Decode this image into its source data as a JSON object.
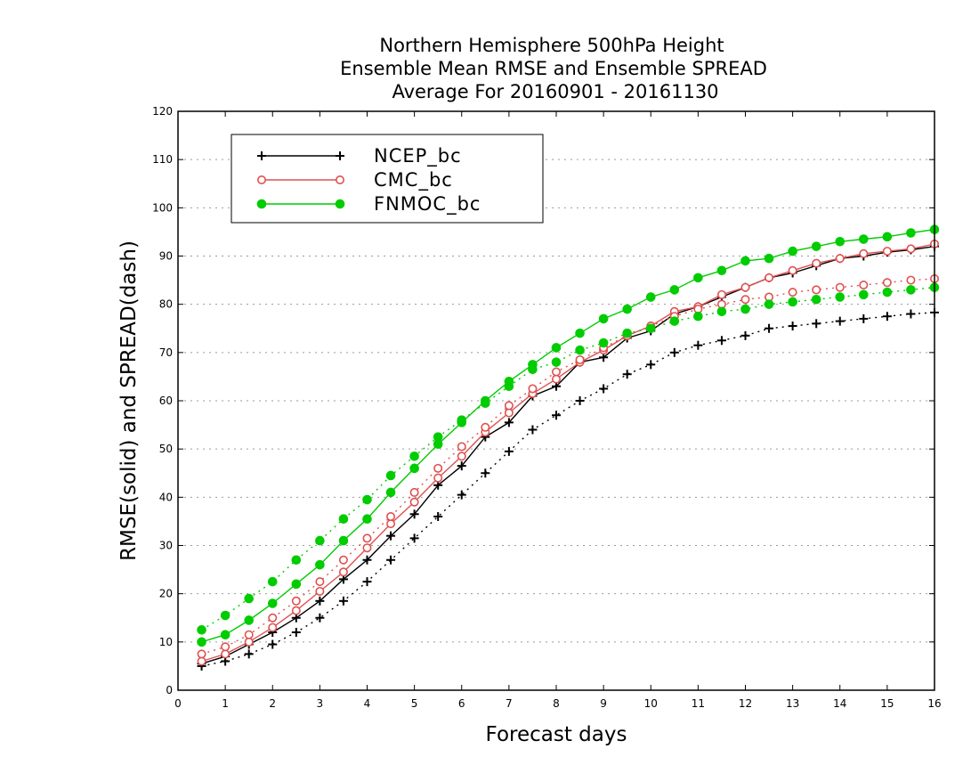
{
  "chart_data": {
    "type": "line",
    "title": [
      "Northern Hemisphere 500hPa Height",
      "Ensemble Mean RMSE and Ensemble SPREAD",
      "Average For 20160901 - 20161130"
    ],
    "xlabel": "Forecast days",
    "ylabel": "RMSE(solid) and SPREAD(dash)",
    "xlim": [
      0,
      16
    ],
    "ylim": [
      0,
      120
    ],
    "xticks": [
      "0",
      "1",
      "2",
      "3",
      "4",
      "5",
      "6",
      "7",
      "8",
      "9",
      "10",
      "11",
      "12",
      "13",
      "14",
      "15",
      "16"
    ],
    "yticks": [
      "0",
      "10",
      "20",
      "30",
      "40",
      "50",
      "60",
      "70",
      "80",
      "90",
      "100",
      "110",
      "120"
    ],
    "grid": "horizontal dotted",
    "legend_position": "top-left",
    "x": [
      0.5,
      1,
      1.5,
      2,
      2.5,
      3,
      3.5,
      4,
      4.5,
      5,
      5.5,
      6,
      6.5,
      7,
      7.5,
      8,
      8.5,
      9,
      9.5,
      10,
      10.5,
      11,
      11.5,
      12,
      12.5,
      13,
      13.5,
      14,
      14.5,
      15,
      15.5,
      16
    ],
    "series": [
      {
        "name": "NCEP_bc",
        "color": "#000000",
        "marker": "plus",
        "rmse": [
          5.5,
          7.0,
          9.5,
          12.0,
          15.0,
          18.5,
          23.0,
          27.0,
          32.0,
          36.5,
          42.5,
          46.5,
          52.5,
          55.5,
          61.0,
          63.0,
          68.0,
          69.0,
          73.0,
          74.5,
          78.0,
          79.5,
          81.5,
          83.5,
          85.5,
          86.5,
          88.0,
          89.5,
          90.0,
          90.8,
          91.3,
          92.0
        ],
        "spread": [
          5.0,
          6.0,
          7.5,
          9.5,
          12.0,
          15.0,
          18.5,
          22.5,
          27.0,
          31.5,
          36.0,
          40.5,
          45.0,
          49.5,
          54.0,
          57.0,
          60.0,
          62.5,
          65.5,
          67.5,
          70.0,
          71.5,
          72.5,
          73.5,
          75.0,
          75.5,
          76.0,
          76.5,
          77.0,
          77.5,
          78.0,
          78.3
        ]
      },
      {
        "name": "CMC_bc",
        "color": "#e05050",
        "marker": "open-circle",
        "rmse": [
          6.0,
          7.5,
          10.0,
          13.0,
          16.5,
          20.5,
          24.5,
          29.5,
          34.5,
          39.0,
          44.0,
          48.5,
          53.5,
          57.5,
          61.5,
          64.5,
          68.0,
          70.5,
          73.5,
          75.5,
          78.5,
          79.5,
          82.0,
          83.5,
          85.5,
          87.0,
          88.5,
          89.5,
          90.5,
          91.0,
          91.5,
          92.5
        ],
        "spread": [
          7.5,
          9.0,
          11.5,
          15.0,
          18.5,
          22.5,
          27.0,
          31.5,
          36.0,
          41.0,
          46.0,
          50.5,
          54.5,
          59.0,
          62.5,
          66.0,
          68.5,
          71.0,
          73.5,
          75.5,
          77.5,
          79.0,
          80.0,
          81.0,
          81.5,
          82.5,
          83.0,
          83.5,
          84.0,
          84.5,
          85.0,
          85.3
        ]
      },
      {
        "name": "FNMOC_bc",
        "color": "#00cc00",
        "marker": "filled-circle",
        "rmse": [
          10.0,
          11.5,
          14.5,
          18.0,
          22.0,
          26.0,
          31.0,
          35.5,
          41.0,
          46.0,
          51.0,
          55.5,
          60.0,
          64.0,
          67.5,
          71.0,
          74.0,
          77.0,
          79.0,
          81.5,
          83.0,
          85.5,
          87.0,
          89.0,
          89.5,
          91.0,
          92.0,
          93.0,
          93.5,
          94.0,
          94.8,
          95.5
        ],
        "spread": [
          12.5,
          15.5,
          19.0,
          22.5,
          27.0,
          31.0,
          35.5,
          39.5,
          44.5,
          48.5,
          52.5,
          56.0,
          59.5,
          63.0,
          66.5,
          68.0,
          70.5,
          72.0,
          74.0,
          75.0,
          76.5,
          77.5,
          78.5,
          79.0,
          80.0,
          80.5,
          81.0,
          81.5,
          82.0,
          82.5,
          83.0,
          83.5
        ]
      }
    ]
  }
}
